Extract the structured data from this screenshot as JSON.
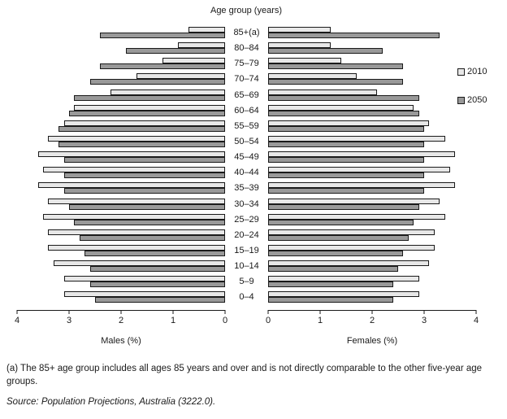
{
  "title": "Age group (years)",
  "legend": [
    {
      "label": "2010",
      "color": "#e8e8e8"
    },
    {
      "label": "2050",
      "color": "#999999"
    }
  ],
  "axes": {
    "max": 4,
    "male_axis_label": "Males (%)",
    "female_axis_label": "Females (%)",
    "male_ticks": [
      "4",
      "3",
      "2",
      "1",
      "0"
    ],
    "female_ticks": [
      "0",
      "1",
      "2",
      "3",
      "4"
    ]
  },
  "chart_data": {
    "type": "bar",
    "variant": "population-pyramid",
    "title": "Age group (years)",
    "xlabel_left": "Males (%)",
    "xlabel_right": "Females (%)",
    "axis_max": 4,
    "legend_position": "right",
    "categories": [
      "85+(a)",
      "80–84",
      "75–79",
      "70–74",
      "65–69",
      "60–64",
      "55–59",
      "50–54",
      "45–49",
      "40–44",
      "35–39",
      "30–34",
      "25–29",
      "20–24",
      "15–19",
      "10–14",
      "5–9",
      "0–4"
    ],
    "series": [
      {
        "name": "2010",
        "side": "male",
        "color": "#e8e8e8",
        "values": [
          0.7,
          0.9,
          1.2,
          1.7,
          2.2,
          2.9,
          3.1,
          3.4,
          3.6,
          3.5,
          3.6,
          3.4,
          3.5,
          3.4,
          3.4,
          3.3,
          3.1,
          3.1
        ]
      },
      {
        "name": "2050",
        "side": "male",
        "color": "#999999",
        "values": [
          2.4,
          1.9,
          2.4,
          2.6,
          2.9,
          3.0,
          3.2,
          3.2,
          3.1,
          3.1,
          3.1,
          3.0,
          2.9,
          2.8,
          2.7,
          2.6,
          2.6,
          2.5
        ]
      },
      {
        "name": "2010",
        "side": "female",
        "color": "#e8e8e8",
        "values": [
          1.2,
          1.2,
          1.4,
          1.7,
          2.1,
          2.8,
          3.1,
          3.4,
          3.6,
          3.5,
          3.6,
          3.3,
          3.4,
          3.2,
          3.2,
          3.1,
          2.9,
          2.9
        ]
      },
      {
        "name": "2050",
        "side": "female",
        "color": "#999999",
        "values": [
          3.3,
          2.2,
          2.6,
          2.6,
          2.9,
          2.9,
          3.0,
          3.0,
          3.0,
          3.0,
          3.0,
          2.9,
          2.8,
          2.7,
          2.6,
          2.5,
          2.4,
          2.4
        ]
      }
    ]
  },
  "footnote": "(a) The 85+ age group includes all ages 85 years and over and is not directly comparable to the other five-year age groups.",
  "source": "Source: Population Projections, Australia (3222.0)."
}
